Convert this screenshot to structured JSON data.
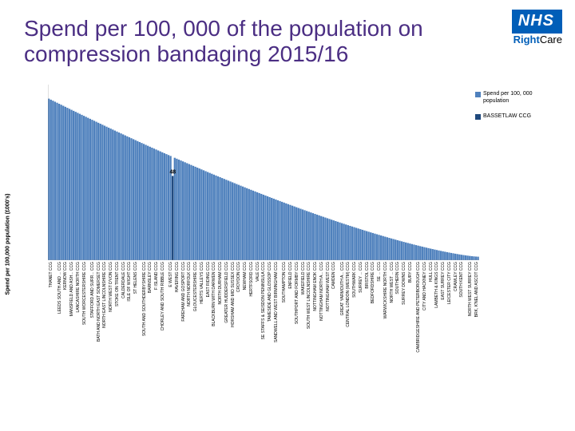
{
  "title": "Spend per 100, 000 of the population on compression bandaging 2015/16",
  "logo": {
    "nhs": "NHS",
    "sub_strong": "Right",
    "sub_rest": "Care"
  },
  "chart": {
    "type": "bar",
    "ylabel": "Spend per 100,000 population (£000's)",
    "ylim": [
      0,
      100
    ],
    "ytick_step": 10,
    "highlight_label": "48",
    "legend": {
      "series": "Spend per 100, 000 population",
      "highlight": "BASSETLAW CCG"
    },
    "colors": {
      "bar": "#4f81bd",
      "highlight": "#1f497d",
      "grid": "#d9d9d9",
      "axis": "#999999",
      "bg": "#ffffff"
    },
    "font": {
      "tick_size": 7,
      "xlabel_size": 5,
      "datalabel_size": 7
    },
    "categories_shown": [
      {
        "label": "THANET CCG",
        "i": 0
      },
      {
        "label": "LEEDS SOUTH AND ... CCG",
        "i": 4
      },
      {
        "label": "KERNOW CCG",
        "i": 7
      },
      {
        "label": "MANSFIELD AND ASH... CCG",
        "i": 10
      },
      {
        "label": "LANCASHIRE NORTH CCG",
        "i": 13
      },
      {
        "label": "SOUTH WORCESTERSHIRE CCG",
        "i": 16
      },
      {
        "label": "STAFFORD AND SURR... CCG",
        "i": 20
      },
      {
        "label": "BATH AND NORTH EAST SOMERSET CCG",
        "i": 23
      },
      {
        "label": "NORTH EAST LINCOLNSHIRE CCG",
        "i": 26
      },
      {
        "label": "NORTH WEST D'VON CCG",
        "i": 29
      },
      {
        "label": "STOKE ON TRENT CCG",
        "i": 32
      },
      {
        "label": "CALDERDALE CCG",
        "i": 35
      },
      {
        "label": "ISLE OF WIGHT CCG",
        "i": 38
      },
      {
        "label": "ST HELENS CCG",
        "i": 41
      },
      {
        "label": "SOUTH AND SOUTHDERBYSHIRE CCG",
        "i": 45
      },
      {
        "label": "BARNSLEY CCG",
        "i": 48
      },
      {
        "label": "F ISLAND CCG",
        "i": 51
      },
      {
        "label": "CHORLEY AND SOUTH RIBBLE CCG",
        "i": 54
      },
      {
        "label": "E WEST CCG",
        "i": 58
      },
      {
        "label": "HAVERING CCG",
        "i": 61
      },
      {
        "label": "FAREHAM AND GOSPORT CCG",
        "i": 64
      },
      {
        "label": "NORTH NORFOLK CCG",
        "i": 67
      },
      {
        "label": "GLOUCESTERSHIRE CCG",
        "i": 70
      },
      {
        "label": "HERTS VALLEYS CCG",
        "i": 73
      },
      {
        "label": "EAST RIDING CCG",
        "i": 76
      },
      {
        "label": "BLACKBURN WITH DARWEN CCG",
        "i": 79
      },
      {
        "label": "NORTH DURHAM CCG",
        "i": 82
      },
      {
        "label": "GREATER HUDDERSFIELD CCG",
        "i": 85
      },
      {
        "label": "HORSHAM AND MID SUSSEX CCG",
        "i": 88
      },
      {
        "label": "CROYDON CCG",
        "i": 91
      },
      {
        "label": "NEWHAM CCG",
        "i": 94
      },
      {
        "label": "HERTFSORD CCG",
        "i": 97
      },
      {
        "label": "VALE CCG",
        "i": 100
      },
      {
        "label": "SE STAFFS & SEISDON PENINSULA CCG",
        "i": 103
      },
      {
        "label": "TAMESIDE AND GLOSSOP CCG",
        "i": 106
      },
      {
        "label": "SANDWELL AND WEST BIRMINGHAM CCG",
        "i": 109
      },
      {
        "label": "SOUTHAMPTON CCG",
        "i": 113
      },
      {
        "label": "ENFIELD CCG",
        "i": 116
      },
      {
        "label": "SOUTHPORT AND FORMBY CCG",
        "i": 119
      },
      {
        "label": "WAKEFIELD CCG",
        "i": 122
      },
      {
        "label": "SOUTH WEST LINCOLNSHIRE CCG",
        "i": 125
      },
      {
        "label": "NOTTINGHAM ENOK CCG",
        "i": 128
      },
      {
        "label": "NOTTINGHAM NORTH A... CCG",
        "i": 131
      },
      {
        "label": "NOTTINGHAM WEST CCG",
        "i": 134
      },
      {
        "label": "CAMDEN CCG",
        "i": 137
      },
      {
        "label": "GREAT YARMOUTH A... CCG",
        "i": 141
      },
      {
        "label": "CENTRAL LONDON (WESTM) CCG",
        "i": 144
      },
      {
        "label": "SOUTHWARK CCG",
        "i": 147
      },
      {
        "label": "SURREY ... CCG",
        "i": 150
      },
      {
        "label": "BRISTOL CCG",
        "i": 153
      },
      {
        "label": "BEDFORDSHIRE CCG",
        "i": 156
      },
      {
        "label": "SE ... CCG",
        "i": 159
      },
      {
        "label": "WARWICKSHIRE NORTH CCG",
        "i": 162
      },
      {
        "label": "NORTH WEST ... CCG",
        "i": 165
      },
      {
        "label": "SOUTHERN CCG",
        "i": 168
      },
      {
        "label": "SURREY DOWNS CCG",
        "i": 171
      },
      {
        "label": "BURY CCG",
        "i": 174
      },
      {
        "label": "CAMBRIDGESHIRE AND PETERBOROUGH CCG",
        "i": 178
      },
      {
        "label": "CITY AND HACKNEY CCG",
        "i": 181
      },
      {
        "label": "HULL CCG",
        "i": 184
      },
      {
        "label": "LAMBETH & KINGS CCG",
        "i": 187
      },
      {
        "label": "EAST SURREY CCG",
        "i": 190
      },
      {
        "label": "LEICESTER CITY CCG",
        "i": 193
      },
      {
        "label": "CRAWLEY CCG",
        "i": 196
      },
      {
        "label": "SOUTH KENT CCG",
        "i": 199
      },
      {
        "label": "NORTH WEST SURREY CCG",
        "i": 203
      },
      {
        "label": "BRK, K'NEL AND ASCOT CCG",
        "i": 206
      }
    ],
    "n_total": 209,
    "highlight_index": 60
  }
}
